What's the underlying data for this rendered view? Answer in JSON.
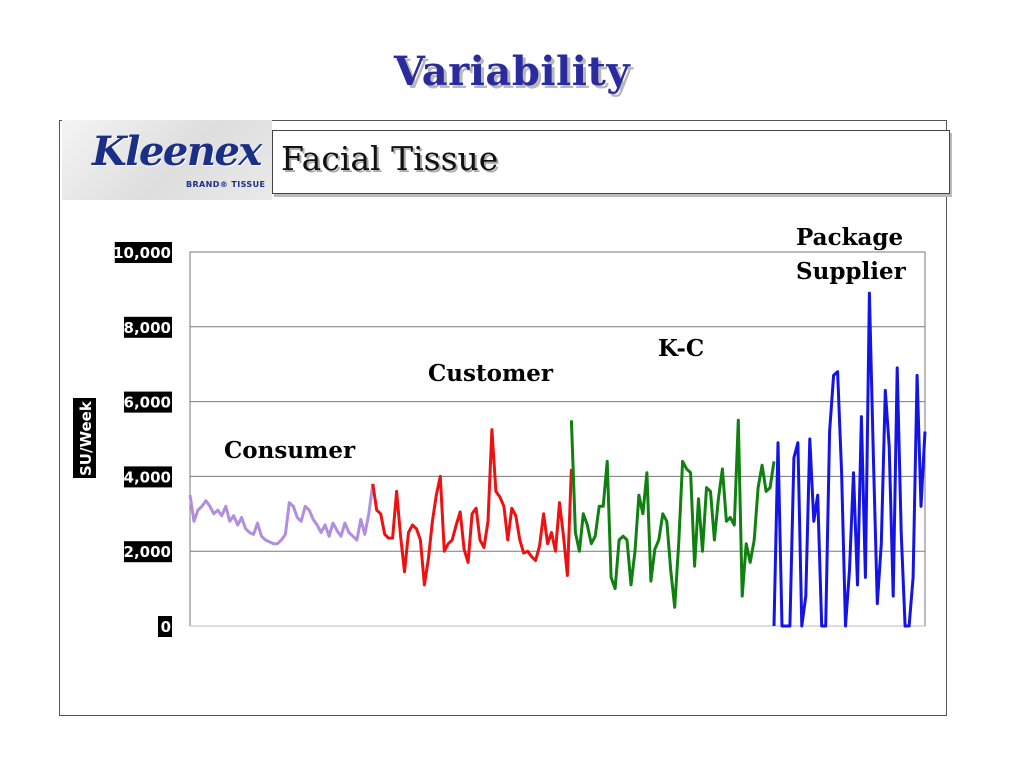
{
  "slide": {
    "title": "Variability"
  },
  "header": {
    "logo_wordmark": "Kleenex",
    "logo_subtext": "BRAND® TISSUE",
    "title": "Facial Tissue"
  },
  "colors": {
    "title": "#2a2c9e",
    "consumer": "#b08fe0",
    "customer": "#ee1111",
    "kc": "#108010",
    "package_supplier": "#1414e6",
    "tick_label_bg": "#000000"
  },
  "chart_data": {
    "type": "line",
    "ylabel": "SU/Week",
    "ylim": [
      0,
      10000
    ],
    "y_ticks": [
      "0",
      "2,000",
      "4,000",
      "6,000",
      "8,000",
      "10,000"
    ],
    "y_tick_values": [
      0,
      2000,
      4000,
      6000,
      8000,
      10000
    ],
    "grid": true,
    "series": [
      {
        "name": "Consumer",
        "x_start": 0,
        "values": [
          3500,
          2800,
          3100,
          3200,
          3350,
          3200,
          3000,
          3100,
          2950,
          3200,
          2800,
          2950,
          2700,
          2900,
          2600,
          2500,
          2450,
          2750,
          2400,
          2300,
          2250,
          2200,
          2200,
          2300,
          2450,
          3300,
          3200,
          2900,
          2800,
          3200,
          3100,
          2850,
          2700,
          2500,
          2700,
          2400,
          2750,
          2550,
          2400,
          2750,
          2500,
          2400,
          2300,
          2850,
          2450,
          3000,
          3800
        ]
      },
      {
        "name": "Customer",
        "x_start": 46,
        "values": [
          3800,
          3100,
          3000,
          2450,
          2350,
          2350,
          3600,
          2400,
          1450,
          2500,
          2700,
          2600,
          2300,
          1100,
          1800,
          2800,
          3500,
          4000,
          2000,
          2200,
          2300,
          2700,
          3050,
          2050,
          1700,
          3000,
          3150,
          2300,
          2100,
          2800,
          5250,
          3600,
          3450,
          3200,
          2300,
          3150,
          2950,
          2300,
          1950,
          2000,
          1850,
          1750,
          2150,
          3000,
          2200,
          2500,
          2000,
          3300,
          2400,
          1350,
          4200
        ]
      },
      {
        "name": "K-C",
        "x_start": 96,
        "values": [
          5500,
          2500,
          2000,
          3000,
          2700,
          2200,
          2400,
          3200,
          3200,
          4400,
          1300,
          1000,
          2300,
          2400,
          2300,
          1100,
          2000,
          3500,
          3000,
          4100,
          1200,
          2050,
          2300,
          3000,
          2800,
          1500,
          500,
          2200,
          4400,
          4200,
          4100,
          1600,
          3400,
          2000,
          3700,
          3600,
          2300,
          3400,
          4200,
          2800,
          2900,
          2700,
          5500,
          800,
          2200,
          1700,
          2300,
          3700,
          4300,
          3600,
          3700,
          4400
        ]
      },
      {
        "name": "Package Supplier",
        "x_start": 147,
        "values": [
          0,
          4900,
          0,
          0,
          0,
          4500,
          4900,
          0,
          800,
          5000,
          2800,
          3500,
          0,
          0,
          5200,
          6700,
          6800,
          4100,
          0,
          1500,
          4100,
          1100,
          5600,
          1300,
          8900,
          4500,
          600,
          2200,
          6300,
          4800,
          800,
          6900,
          2500,
          0,
          0,
          1300,
          6700,
          3200,
          5200
        ]
      }
    ],
    "annotations": [
      {
        "text": "Consumer",
        "anchor": "Consumer"
      },
      {
        "text": "Customer",
        "anchor": "Customer"
      },
      {
        "text": "K-C",
        "anchor": "K-C"
      },
      {
        "text": "Package",
        "anchor": "Package Supplier"
      },
      {
        "text": "Supplier",
        "anchor": "Package Supplier"
      }
    ]
  }
}
